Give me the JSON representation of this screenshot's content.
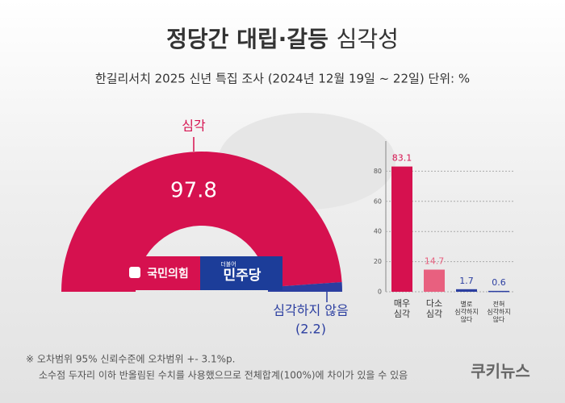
{
  "title": "정당간 대립·갈등",
  "title_suffix": "심각성",
  "subtitle": "한길리서치 2025 신년 특집 조사 (2024년 12월 19일 ~ 22일) 단위: %",
  "logos": {
    "ppp": "국민의힘",
    "dp_small": "더불어",
    "dp": "민주당"
  },
  "notes": [
    "※ 오차범위 95% 신뢰수준에 오차범위 +- 3.1%p.",
    "소수점 두자리 이하 반올림된 수치를 사용했으므로 전체합계(100%)에 차이가 있을 수 있음"
  ],
  "source": "쿠키뉴스",
  "chart_data": [
    {
      "type": "pie",
      "categories": [
        "심각",
        "심각하지 않음"
      ],
      "values": [
        97.8,
        2.2
      ],
      "value_labels": [
        "97.8",
        "(2.2)"
      ],
      "colors": [
        "#d6114f",
        "#2b3ea0"
      ]
    },
    {
      "type": "bar",
      "categories": [
        "매우\n심각",
        "다소\n심각",
        "별로\n심각하지\n않다",
        "전혀\n심각하지\n않다"
      ],
      "values": [
        83.1,
        14.7,
        1.7,
        0.6
      ],
      "colors": [
        "#d6114f",
        "#e8607f",
        "#2b3ea0",
        "#2b3ea0"
      ],
      "ylim": [
        0,
        100
      ],
      "yticks": [
        0,
        20,
        40,
        60,
        80
      ],
      "grid": true
    }
  ]
}
